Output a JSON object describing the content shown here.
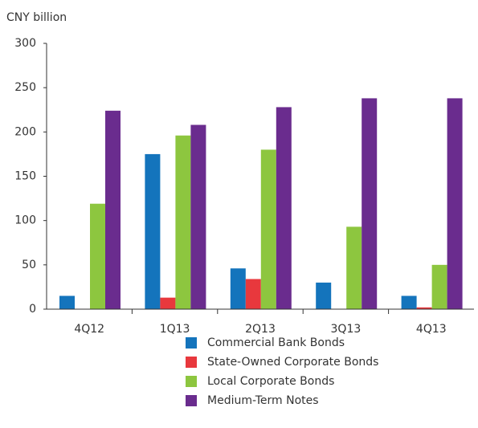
{
  "chart_data": {
    "type": "bar",
    "y_label": "CNY billion",
    "categories": [
      "4Q12",
      "1Q13",
      "2Q13",
      "3Q13",
      "4Q13"
    ],
    "series": [
      {
        "name": "Commercial Bank Bonds",
        "color": "#1474bc",
        "values": [
          15,
          175,
          46,
          30,
          15
        ]
      },
      {
        "name": "State-Owned Corporate Bonds",
        "color": "#e8383d",
        "values": [
          0,
          13,
          34,
          0,
          2
        ]
      },
      {
        "name": "Local Corporate Bonds",
        "color": "#8dc63f",
        "values": [
          119,
          196,
          180,
          93,
          50
        ]
      },
      {
        "name": "Medium-Term Notes",
        "color": "#6a2c8e",
        "values": [
          224,
          208,
          228,
          238,
          238
        ]
      }
    ],
    "ylim": [
      0,
      300
    ],
    "yticks": [
      0,
      50,
      100,
      150,
      200,
      250,
      300
    ],
    "grid": false
  }
}
